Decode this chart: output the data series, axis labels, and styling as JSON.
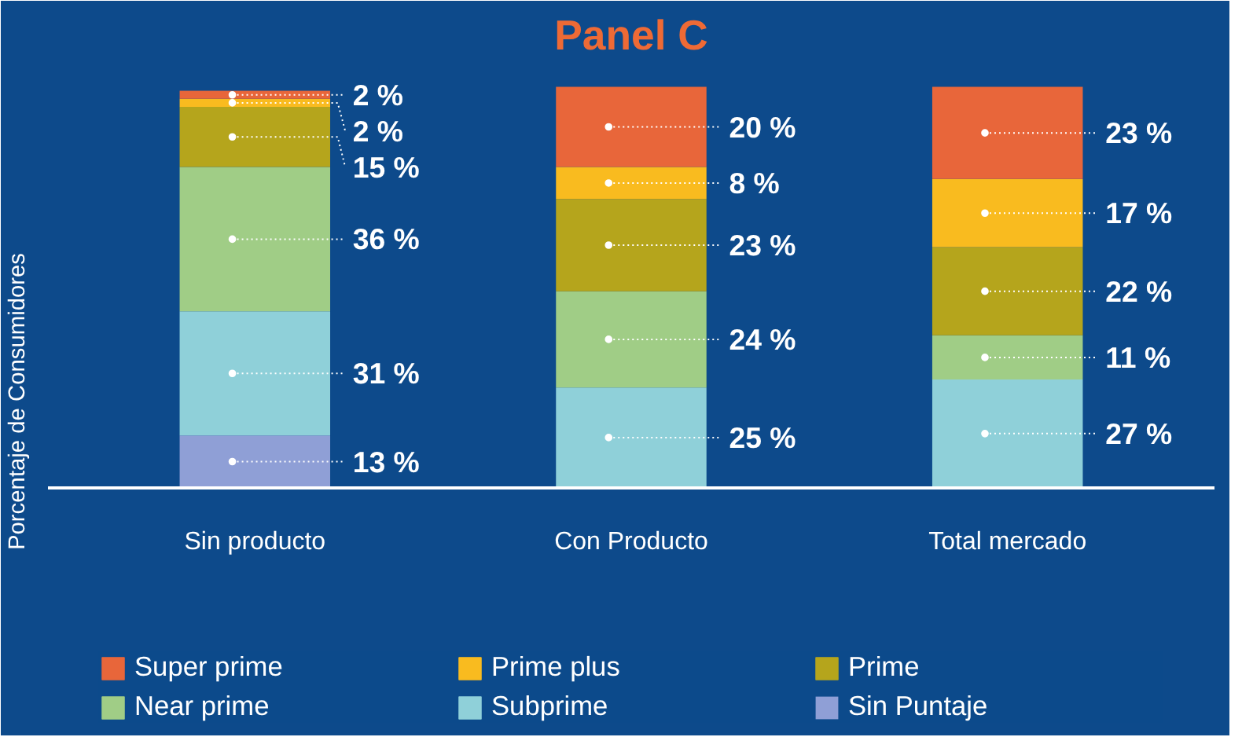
{
  "chart_data": {
    "type": "bar",
    "title": "Panel C",
    "ylabel": "Porcentaje de Consumidores",
    "stacked": true,
    "categories": [
      "Sin producto",
      "Con Producto",
      "Total mercado"
    ],
    "ylim": [
      0,
      100
    ],
    "tick_labels": "x",
    "grid": false,
    "legend": "bottom",
    "series": [
      {
        "name": "Sin Puntaje",
        "color": "#8f9fd6",
        "values": [
          13,
          null,
          null
        ],
        "value_labels": [
          "13 %",
          null,
          null
        ]
      },
      {
        "name": "Subprime",
        "color": "#8fd0d9",
        "values": [
          31,
          25,
          27
        ],
        "value_labels": [
          "31 %",
          "25 %",
          "27 %"
        ]
      },
      {
        "name": "Near prime",
        "color": "#a0cd86",
        "values": [
          36,
          24,
          11
        ],
        "value_labels": [
          "36 %",
          "24 %",
          "11 %"
        ]
      },
      {
        "name": "Prime",
        "color": "#b5a51c",
        "values": [
          15,
          23,
          22
        ],
        "value_labels": [
          "15 %",
          "23 %",
          "22 %"
        ]
      },
      {
        "name": "Prime plus",
        "color": "#f9bb1f",
        "values": [
          2,
          8,
          17
        ],
        "value_labels": [
          "2 %",
          "8 %",
          "17 %"
        ]
      },
      {
        "name": "Super prime",
        "color": "#e8663a",
        "values": [
          2,
          20,
          23
        ],
        "value_labels": [
          "2 %",
          "20 %",
          "23 %"
        ]
      }
    ]
  }
}
